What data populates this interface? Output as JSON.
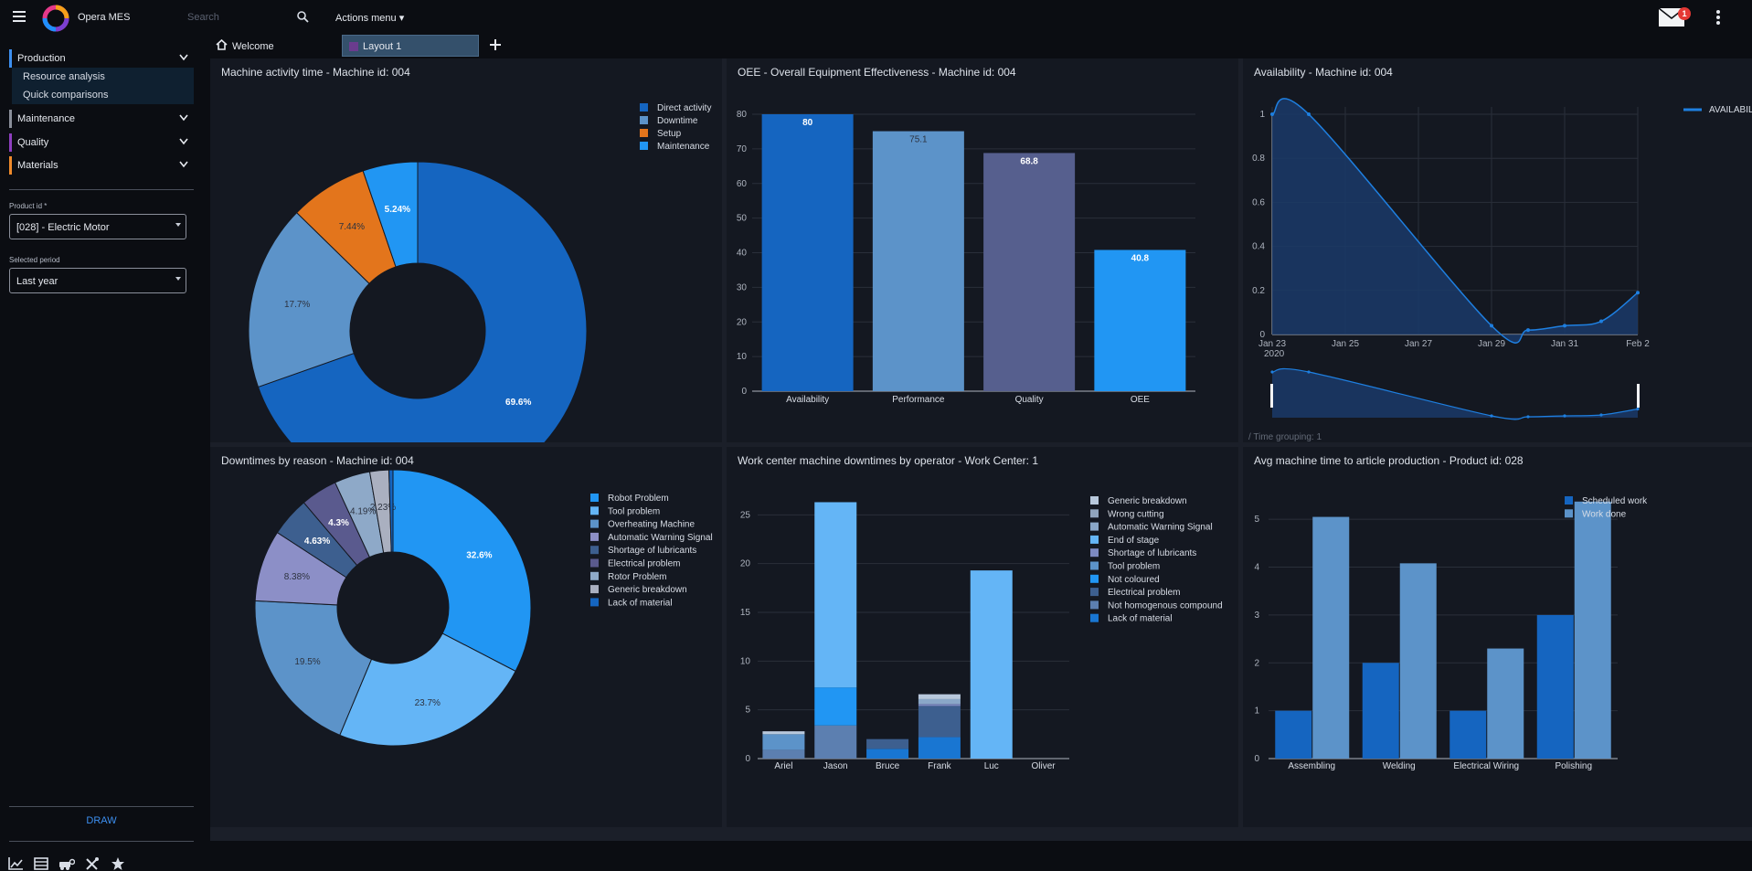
{
  "header": {
    "app_name": "Opera MES",
    "search_placeholder": "Search",
    "actions_menu": "Actions menu",
    "mail_badge": "1"
  },
  "sidebar": {
    "sections": [
      {
        "label": "Production",
        "color": "#3d8ff0"
      },
      {
        "label": "Maintenance",
        "color": "#8a8f9a"
      },
      {
        "label": "Quality",
        "color": "#8e3fbf"
      },
      {
        "label": "Materials",
        "color": "#ef8a2b"
      }
    ],
    "production_items": [
      "Resource analysis",
      "Quick comparisons"
    ],
    "product_label": "Product id *",
    "product_value": "[028] - Electric Motor",
    "period_label": "Selected period",
    "period_value": "Last year",
    "draw_label": "DRAW"
  },
  "tabs": {
    "welcome": "Welcome",
    "layout": "Layout 1"
  },
  "panels": {
    "activity_title": "Machine activity time - Machine id: 004",
    "oee_title": "OEE - Overall Equipment Effectiveness - Machine id: 004",
    "availability_title": "Availability - Machine id: 004",
    "downtime_reason_title": "Downtimes by reason - Machine id: 004",
    "operator_title": "Work center machine downtimes by operator - Work Center: 1",
    "article_title": "Avg machine time to article production - Product id: 028",
    "time_grouping": "/ Time grouping: 1"
  },
  "chart_data": [
    {
      "type": "pie",
      "title": "Machine activity time - Machine id: 004",
      "labels": [
        "Direct activity",
        "Downtime",
        "Setup",
        "Maintenance"
      ],
      "values": [
        69.6,
        17.7,
        7.44,
        5.24
      ],
      "value_labels": [
        "69.6%",
        "17.7%",
        "7.44%",
        "5.24%"
      ],
      "colors": [
        "#1565c0",
        "#5c93c9",
        "#e3751c",
        "#2196f3"
      ],
      "legend": "top-right"
    },
    {
      "type": "bar",
      "title": "OEE - Overall Equipment Effectiveness - Machine id: 004",
      "categories": [
        "Availability",
        "Performance",
        "Quality",
        "OEE"
      ],
      "values": [
        80,
        75.1,
        68.8,
        40.8
      ],
      "value_labels": [
        "80",
        "75.1",
        "68.8",
        "40.8"
      ],
      "colors": [
        "#1565c0",
        "#5c93c9",
        "#565f8e",
        "#2196f3"
      ],
      "ylim": [
        0,
        80
      ],
      "yticks": [
        "0",
        "10",
        "20",
        "30",
        "40",
        "50",
        "60",
        "70",
        "80"
      ],
      "grid": true
    },
    {
      "type": "area",
      "title": "Availability - Machine id: 004",
      "series": [
        {
          "name": "AVAILABILITY"
        }
      ],
      "x": [
        "2020-01-23",
        "2020-01-24",
        "2020-01-29",
        "2020-01-30",
        "2020-01-31",
        "2020-02-01",
        "2020-02-02"
      ],
      "y": [
        1,
        1,
        0.04,
        0.02,
        0.04,
        0.06,
        0.19
      ],
      "xticks": [
        "Jan 23",
        "Jan 25",
        "Jan 27",
        "Jan 29",
        "Jan 31",
        "Feb 2"
      ],
      "xtick_year": "2020",
      "yticks": [
        "0",
        "0.2",
        "0.4",
        "0.6",
        "0.8",
        "1"
      ],
      "ylim": [
        0,
        1
      ],
      "legend": "top-right",
      "grid": true
    },
    {
      "type": "pie",
      "title": "Downtimes by reason - Machine id: 004",
      "labels": [
        "Robot Problem",
        "Tool problem",
        "Overheating Machine",
        "Automatic Warning Signal",
        "Shortage of lubricants",
        "Electrical problem",
        "Rotor Problem",
        "Generic breakdown",
        "Lack of material"
      ],
      "values": [
        32.6,
        23.7,
        19.5,
        8.38,
        4.63,
        4.3,
        4.19,
        2.23,
        0.47
      ],
      "value_labels": [
        "32.6%",
        "23.7%",
        "19.5%",
        "8.38%",
        "4.63%",
        "4.3%",
        "4.19%",
        "2.23%",
        ""
      ],
      "colors": [
        "#2196f3",
        "#64b5f6",
        "#5c93c9",
        "#8c8fc7",
        "#3d5f8f",
        "#5a5a8e",
        "#8ea9c8",
        "#aab0c0",
        "#1565c0"
      ],
      "legend": "top-right"
    },
    {
      "type": "bar",
      "stacked": true,
      "title": "Work center machine downtimes by operator - Work Center: 1",
      "categories": [
        "Ariel",
        "Jason",
        "Bruce",
        "Frank",
        "Luc",
        "Oliver"
      ],
      "series": [
        {
          "name": "Generic breakdown",
          "color": "#b8c8dc",
          "values": [
            0.3,
            0,
            0,
            0.5,
            0,
            0
          ]
        },
        {
          "name": "Wrong cutting",
          "color": "#90a4bd",
          "values": [
            0,
            0,
            0,
            0,
            0,
            0
          ]
        },
        {
          "name": "Automatic Warning Signal",
          "color": "#8aa7c8",
          "values": [
            0,
            0,
            0,
            0.5,
            0,
            0
          ]
        },
        {
          "name": "End of stage",
          "color": "#64b5f6",
          "values": [
            0,
            19,
            0,
            0,
            19.3,
            0
          ]
        },
        {
          "name": "Shortage of lubricants",
          "color": "#7d8ac2",
          "values": [
            0,
            0,
            0,
            0.2,
            0,
            0
          ]
        },
        {
          "name": "Tool problem",
          "color": "#5c93c9",
          "values": [
            1.6,
            0,
            0,
            0,
            0,
            0
          ]
        },
        {
          "name": "Not coloured",
          "color": "#2196f3",
          "values": [
            0,
            3.9,
            0,
            0,
            0,
            0
          ]
        },
        {
          "name": "Electrical problem",
          "color": "#3d5f8f",
          "values": [
            0,
            0,
            1,
            3.2,
            0,
            0
          ]
        },
        {
          "name": "Not homogenous compound",
          "color": "#5c7fb0",
          "values": [
            0.9,
            3.4,
            0,
            0,
            0,
            0
          ]
        },
        {
          "name": "Lack of material",
          "color": "#1976d2",
          "values": [
            0,
            0,
            1,
            2.2,
            0,
            0
          ]
        }
      ],
      "ylim": [
        0,
        27
      ],
      "yticks": [
        "0",
        "5",
        "10",
        "15",
        "20",
        "25"
      ],
      "legend": "top-right",
      "grid": true
    },
    {
      "type": "bar",
      "title": "Avg machine time to article production - Product id: 028",
      "categories": [
        "Assembling",
        "Welding",
        "Electrical Wiring",
        "Polishing"
      ],
      "series": [
        {
          "name": "Scheduled work",
          "color": "#1565c0",
          "values": [
            1,
            2,
            1,
            3
          ]
        },
        {
          "name": "Work done",
          "color": "#5c93c9",
          "values": [
            5.05,
            4.08,
            2.3,
            5.37
          ]
        }
      ],
      "ylim": [
        0,
        5.5
      ],
      "yticks": [
        "0",
        "1",
        "2",
        "3",
        "4",
        "5"
      ],
      "legend": "top-right",
      "grid": true
    }
  ]
}
